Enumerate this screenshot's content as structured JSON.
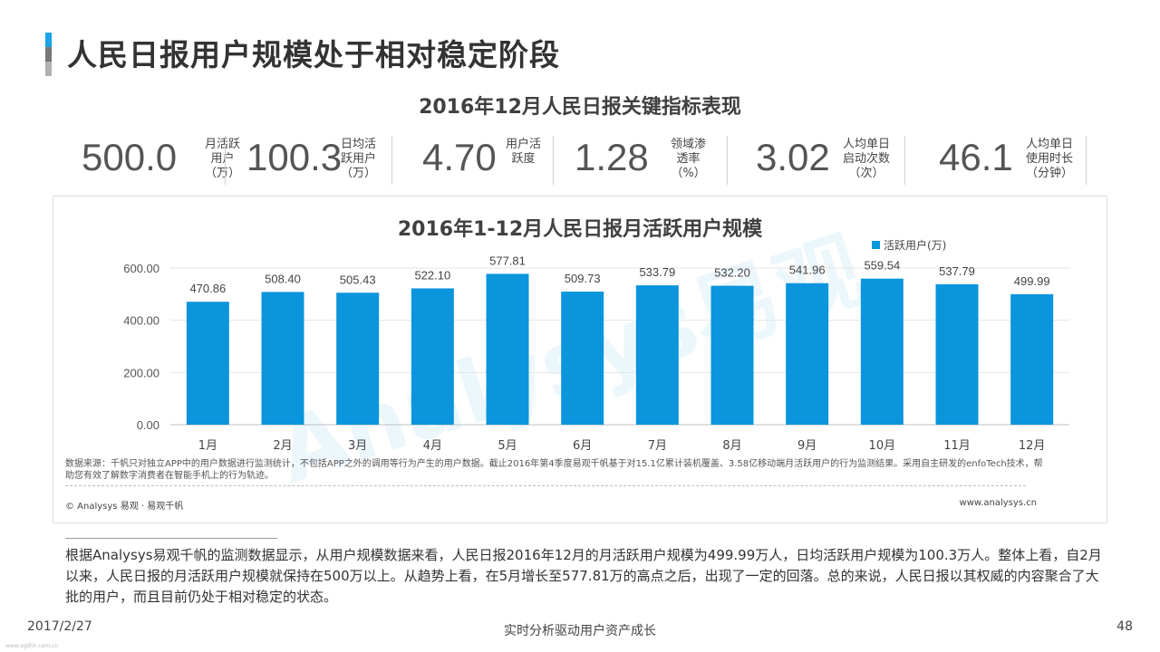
{
  "page": {
    "title": "人民日报用户规模处于相对稳定阶段",
    "title_bar_colors": [
      "#1aa3e8",
      "#777777",
      "#b0b0b0"
    ]
  },
  "kpi": {
    "heading": "2016年12月人民日报关键指标表现",
    "items": [
      {
        "value": "500.0",
        "label": "月活跃\n用户\n（万）"
      },
      {
        "value": "100.3",
        "label": "日均活\n跃用户\n（万）"
      },
      {
        "value": "4.70",
        "label": "用户活\n跃度"
      },
      {
        "value": "1.28",
        "label": "领域渗\n透率\n（%）"
      },
      {
        "value": "3.02",
        "label": "人均单日\n启动次数\n（次）"
      },
      {
        "value": "46.1",
        "label": "人均单日\n使用时长\n（分钟）"
      }
    ]
  },
  "chart_data": {
    "type": "bar",
    "title": "2016年1-12月人民日报月活跃用户规模",
    "categories": [
      "1月",
      "2月",
      "3月",
      "4月",
      "5月",
      "6月",
      "7月",
      "8月",
      "9月",
      "10月",
      "11月",
      "12月"
    ],
    "series": [
      {
        "name": "活跃用户(万)",
        "values": [
          470.86,
          508.4,
          505.43,
          522.1,
          577.81,
          509.73,
          533.79,
          532.2,
          541.96,
          559.54,
          537.79,
          499.99
        ],
        "color": "#0a95dc"
      }
    ],
    "value_labels": [
      "470.86",
      "508.40",
      "505.43",
      "522.10",
      "577.81",
      "509.73",
      "533.79",
      "532.20",
      "541.96",
      "559.54",
      "537.79",
      "499.99"
    ],
    "y_ticks": [
      "0.00",
      "200.00",
      "400.00",
      "600.00"
    ],
    "ylim": [
      0,
      600
    ],
    "grid": true,
    "legend_position": "top-right",
    "watermark": "Analysys易观"
  },
  "chart_footer": {
    "note": "数据来源：千帆只对独立APP中的用户数据进行监测统计，不包括APP之外的调用等行为产生的用户数据。截止2016年第4季度易观千帆基于对15.1亿累计装机覆盖、3.58亿移动端月活跃用户的行为监测结果。采用自主研发的enfoTech技术，帮助您有效了解数字消费者在智能手机上的行为轨迹。",
    "copyright": "© Analysys 易观 · 易观千帆",
    "site": "www.analysys.cn"
  },
  "summary": "根据Analysys易观千帆的监测数据显示，从用户规模数据来看，人民日报2016年12月的月活跃用户规模为499.99万人，日均活跃用户规模为100.3万人。整体上看，自2月以来，人民日报的月活跃用户规模就保持在500万以上。从趋势上看，在5月增长至577.81万的高点之后，出现了一定的回落。总的来说，人民日报以其权威的内容聚合了大批的用户，而且目前仍处于相对稳定的状态。",
  "footer": {
    "date": "2017/2/27",
    "center": "实时分析驱动用户资产成长",
    "page_number": "48",
    "tiny": "www.sgdhh.com.cn"
  }
}
